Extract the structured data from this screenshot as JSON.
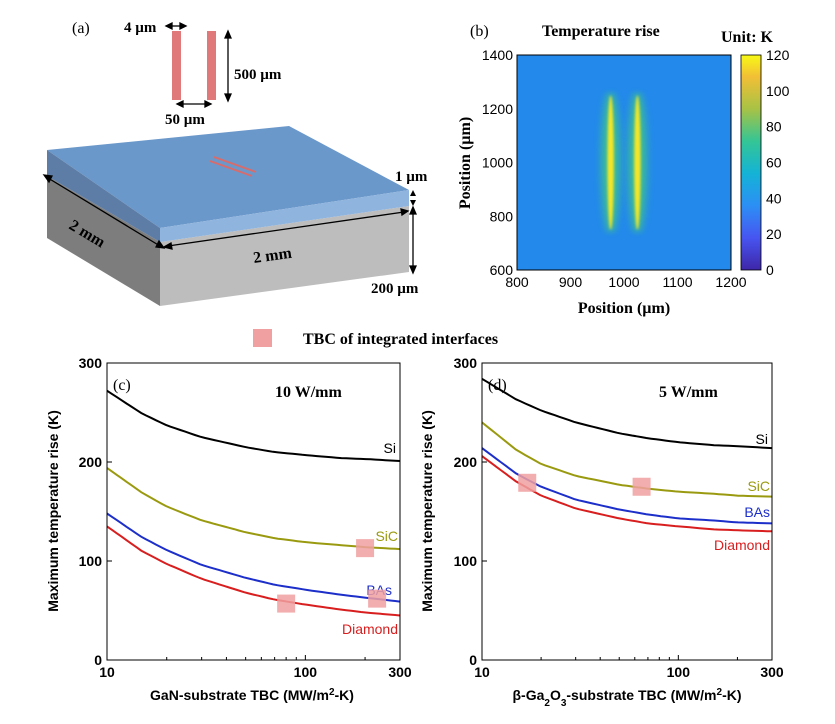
{
  "panel_a": {
    "label": "(a)",
    "dim_width": "4 µm",
    "dim_length": "500 µm",
    "dim_gap": "50 µm",
    "dim_film": "1 µm",
    "dim_side1": "2 mm",
    "dim_side2": "2 mm",
    "dim_substrate": "200 µm",
    "colors": {
      "film": "#5b8fc6",
      "substrate": "#b7b7b7",
      "heater": "#e07a7a"
    }
  },
  "panel_b": {
    "label": "(b)",
    "title": "Temperature rise",
    "unit": "Unit: K",
    "xlabel": "Position (µm)",
    "ylabel": "Position (µm)",
    "xticks": [
      "800",
      "900",
      "1000",
      "1100",
      "1200"
    ],
    "yticks": [
      "600",
      "800",
      "1000",
      "1200",
      "1400"
    ],
    "cbar_ticks": [
      "0",
      "20",
      "40",
      "60",
      "80",
      "100",
      "120"
    ]
  },
  "legend": {
    "marker_label": "TBC of integrated interfaces",
    "marker_color": "#f0a0a0"
  },
  "chart_data": [
    {
      "type": "heatmap",
      "title": "Temperature rise",
      "xlabel": "Position (µm)",
      "ylabel": "Position (µm)",
      "xlim": [
        800,
        1200
      ],
      "ylim": [
        600,
        1400
      ],
      "clim": [
        0,
        120
      ],
      "heaters": [
        {
          "x": 975,
          "y_start": 750,
          "y_end": 1250,
          "peak": 118
        },
        {
          "x": 1025,
          "y_start": 750,
          "y_end": 1250,
          "peak": 118
        }
      ],
      "background": 30
    },
    {
      "type": "line",
      "label": "(c)",
      "annotation": "10 W/mm",
      "xlabel_main": "GaN-substrate TBC (MW/m",
      "xlabel_sup": "2",
      "xlabel_tail": "-K)",
      "ylabel": "Maximum temperature rise (K)",
      "xscale": "log",
      "xlim": [
        10,
        300
      ],
      "ylim": [
        0,
        300
      ],
      "xticks": [
        "10",
        "100",
        "300"
      ],
      "yticks": [
        "0",
        "100",
        "200",
        "300"
      ],
      "x": [
        10,
        15,
        20,
        30,
        50,
        70,
        100,
        150,
        200,
        300
      ],
      "series": [
        {
          "name": "Si",
          "color": "#000000",
          "values": [
            272,
            249,
            237,
            225,
            215,
            210,
            207,
            204,
            203,
            201
          ]
        },
        {
          "name": "SiC",
          "color": "#9a9a10",
          "values": [
            194,
            169,
            155,
            141,
            129,
            123,
            119,
            116,
            114,
            112
          ]
        },
        {
          "name": "BAs",
          "color": "#1d2fc9",
          "values": [
            148,
            124,
            111,
            96,
            83,
            76,
            71,
            66,
            63,
            59
          ]
        },
        {
          "name": "Diamond",
          "color": "#d81e1e",
          "values": [
            135,
            110,
            97,
            82,
            68,
            61,
            56,
            51,
            48,
            45
          ]
        }
      ],
      "markers": [
        {
          "x": 80,
          "y": 57
        },
        {
          "x": 200,
          "y": 113
        },
        {
          "x": 230,
          "y": 62
        }
      ]
    },
    {
      "type": "line",
      "label": "(d)",
      "annotation": "5 W/mm",
      "xlabel_main": "β-Ga",
      "xlabel_sub1": "2",
      "xlabel_mid": "O",
      "xlabel_sub2": "3",
      "xlabel_mid2": "-substrate TBC (MW/m",
      "xlabel_sup": "2",
      "xlabel_tail": "-K)",
      "ylabel": "Maximum temperature rise (K)",
      "xscale": "log",
      "xlim": [
        10,
        300
      ],
      "ylim": [
        0,
        300
      ],
      "xticks": [
        "10",
        "100",
        "300"
      ],
      "yticks": [
        "0",
        "100",
        "200",
        "300"
      ],
      "x": [
        10,
        15,
        20,
        30,
        50,
        70,
        100,
        150,
        200,
        300
      ],
      "series": [
        {
          "name": "Si",
          "color": "#000000",
          "values": [
            284,
            263,
            252,
            240,
            229,
            224,
            220,
            217,
            216,
            214
          ]
        },
        {
          "name": "SiC",
          "color": "#9a9a10",
          "values": [
            240,
            212,
            198,
            186,
            177,
            173,
            170,
            168,
            166,
            165
          ]
        },
        {
          "name": "BAs",
          "color": "#1d2fc9",
          "values": [
            214,
            188,
            175,
            162,
            152,
            147,
            143,
            141,
            139,
            138
          ]
        },
        {
          "name": "Diamond",
          "color": "#d81e1e",
          "values": [
            206,
            180,
            166,
            153,
            143,
            138,
            135,
            132,
            131,
            130
          ]
        }
      ],
      "markers": [
        {
          "x": 17,
          "y": 179
        },
        {
          "x": 65,
          "y": 175
        }
      ]
    }
  ]
}
